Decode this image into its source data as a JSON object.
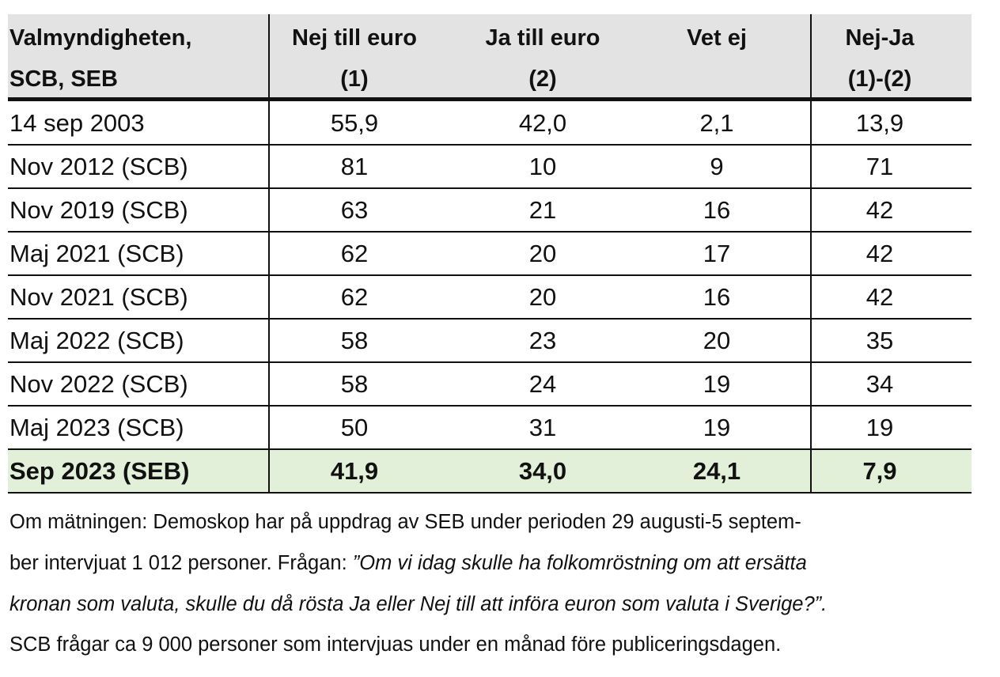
{
  "table": {
    "header": [
      [
        "Valmyndigheten,",
        "SCB, SEB"
      ],
      [
        "Nej till euro",
        "(1)"
      ],
      [
        "Ja till euro",
        "(2)"
      ],
      [
        "Vet ej"
      ],
      [
        "Nej-Ja",
        "(1)-(2)"
      ]
    ],
    "rows": [
      [
        "14 sep 2003",
        "55,9",
        "42,0",
        "2,1",
        "13,9"
      ],
      [
        "Nov 2012 (SCB)",
        "81",
        "10",
        "9",
        "71"
      ],
      [
        "Nov 2019 (SCB)",
        "63",
        "21",
        "16",
        "42"
      ],
      [
        "Maj 2021 (SCB)",
        "62",
        "20",
        "17",
        "42"
      ],
      [
        "Nov 2021 (SCB)",
        "62",
        "20",
        "16",
        "42"
      ],
      [
        "Maj 2022 (SCB)",
        "58",
        "23",
        "20",
        "35"
      ],
      [
        "Nov 2022 (SCB)",
        "58",
        "24",
        "19",
        "34"
      ],
      [
        "Maj 2023 (SCB)",
        "50",
        "31",
        "19",
        "19"
      ],
      [
        "Sep 2023 (SEB)",
        "41,9",
        "34,0",
        "24,1",
        "7,9"
      ]
    ]
  },
  "note": {
    "line1": "Om mätningen: Demoskop har på uppdrag av SEB under perioden 29 augusti-5 septem-",
    "line2": "ber intervjuat 1 012 personer. Frågan: ",
    "quote_line2": "”Om vi idag skulle ha folkomröstning om att ersätta",
    "quote_line3": "kronan som valuta, skulle du då rösta Ja eller Nej till att införa euron som valuta i Sverige?”.",
    "line4": "SCB frågar ca 9 000 personer som intervjuas under en månad före publiceringsdagen."
  }
}
